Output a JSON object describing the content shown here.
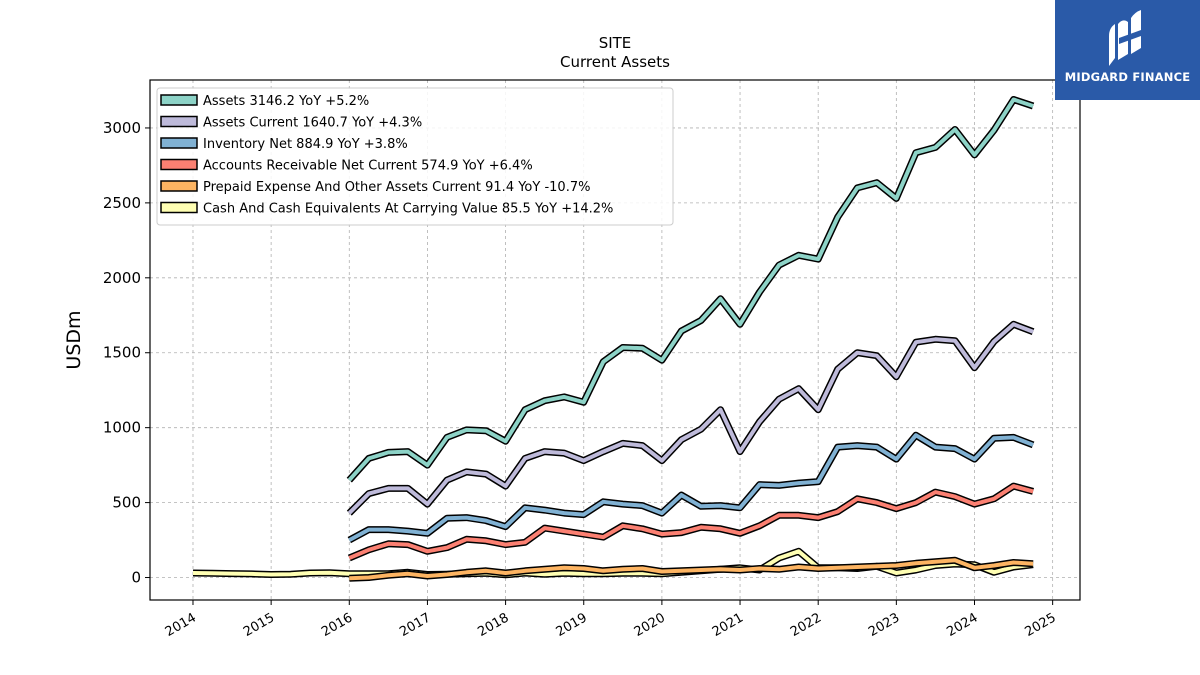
{
  "brand": {
    "name": "MIDGARD FINANCE",
    "icon": "midgard-logo-icon"
  },
  "chart_data": {
    "type": "line",
    "title": "SITE",
    "subtitle": "Current  Assets",
    "ylabel": "USDm",
    "xlabel": "",
    "ylim": [
      -150,
      3320
    ],
    "xlim": [
      2013.45,
      2025.35
    ],
    "yticks": [
      0,
      500,
      1000,
      1500,
      2000,
      2500,
      3000
    ],
    "xticks": [
      2014,
      2015,
      2016,
      2017,
      2018,
      2019,
      2020,
      2021,
      2022,
      2023,
      2024,
      2025
    ],
    "grid": true,
    "legend_position": "top-left",
    "series": [
      {
        "name": "Assets  3146.2 YoY +5.2%",
        "color": "#8dd3c7",
        "x": [
          2016.0,
          2016.25,
          2016.5,
          2016.75,
          2017.0,
          2017.25,
          2017.5,
          2017.75,
          2018.0,
          2018.25,
          2018.5,
          2018.75,
          2019.0,
          2019.25,
          2019.5,
          2019.75,
          2020.0,
          2020.25,
          2020.5,
          2020.75,
          2021.0,
          2021.25,
          2021.5,
          2021.75,
          2022.0,
          2022.25,
          2022.5,
          2022.75,
          2023.0,
          2023.25,
          2023.5,
          2023.75,
          2024.0,
          2024.25,
          2024.5,
          2024.75
        ],
        "y": [
          650,
          795,
          835,
          840,
          750,
          935,
          985,
          980,
          910,
          1120,
          1180,
          1205,
          1170,
          1440,
          1535,
          1530,
          1450,
          1645,
          1715,
          1860,
          1690,
          1905,
          2085,
          2150,
          2125,
          2405,
          2600,
          2635,
          2530,
          2835,
          2870,
          2990,
          2820,
          2985,
          3190,
          3146.2
        ]
      },
      {
        "name": "Assets Current  1640.7 YoY +4.3%",
        "color": "#bebada",
        "x": [
          2016.0,
          2016.25,
          2016.5,
          2016.75,
          2017.0,
          2017.25,
          2017.5,
          2017.75,
          2018.0,
          2018.25,
          2018.5,
          2018.75,
          2019.0,
          2019.25,
          2019.5,
          2019.75,
          2020.0,
          2020.25,
          2020.5,
          2020.75,
          2021.0,
          2021.25,
          2021.5,
          2021.75,
          2022.0,
          2022.25,
          2022.5,
          2022.75,
          2023.0,
          2023.25,
          2023.5,
          2023.75,
          2024.0,
          2024.25,
          2024.5,
          2024.75
        ],
        "y": [
          430,
          560,
          595,
          595,
          490,
          650,
          705,
          690,
          610,
          795,
          840,
          830,
          780,
          840,
          895,
          880,
          780,
          920,
          990,
          1120,
          840,
          1040,
          1190,
          1260,
          1120,
          1390,
          1500,
          1480,
          1340,
          1570,
          1590,
          1580,
          1400,
          1575,
          1690,
          1640.7
        ]
      },
      {
        "name": "Inventory Net  884.9 YoY +3.8%",
        "color": "#80b1d3",
        "x": [
          2016.0,
          2016.25,
          2016.5,
          2016.75,
          2017.0,
          2017.25,
          2017.5,
          2017.75,
          2018.0,
          2018.25,
          2018.5,
          2018.75,
          2019.0,
          2019.25,
          2019.5,
          2019.75,
          2020.0,
          2020.25,
          2020.5,
          2020.75,
          2021.0,
          2021.25,
          2021.5,
          2021.75,
          2022.0,
          2022.25,
          2022.5,
          2022.75,
          2023.0,
          2023.25,
          2023.5,
          2023.75,
          2024.0,
          2024.25,
          2024.5,
          2024.75
        ],
        "y": [
          250,
          320,
          320,
          310,
          295,
          395,
          400,
          380,
          340,
          465,
          450,
          430,
          420,
          505,
          490,
          480,
          430,
          550,
          475,
          480,
          465,
          620,
          615,
          630,
          640,
          870,
          880,
          870,
          790,
          950,
          870,
          860,
          790,
          930,
          935,
          884.9
        ]
      },
      {
        "name": "Accounts Receivable Net Current  574.9 YoY +6.4%",
        "color": "#fb8072",
        "x": [
          2016.0,
          2016.25,
          2016.5,
          2016.75,
          2017.0,
          2017.25,
          2017.5,
          2017.75,
          2018.0,
          2018.25,
          2018.5,
          2018.75,
          2019.0,
          2019.25,
          2019.5,
          2019.75,
          2020.0,
          2020.25,
          2020.5,
          2020.75,
          2021.0,
          2021.25,
          2021.5,
          2021.75,
          2022.0,
          2022.25,
          2022.5,
          2022.75,
          2023.0,
          2023.25,
          2023.5,
          2023.75,
          2024.0,
          2024.25,
          2024.5,
          2024.75
        ],
        "y": [
          130,
          185,
          225,
          220,
          175,
          200,
          255,
          245,
          220,
          235,
          330,
          310,
          290,
          270,
          345,
          325,
          290,
          300,
          335,
          325,
          295,
          345,
          415,
          415,
          400,
          440,
          525,
          500,
          460,
          500,
          570,
          540,
          490,
          525,
          610,
          574.9
        ]
      },
      {
        "name": "Prepaid Expense And Other Assets Current  91.4 YoY -10.7%",
        "color": "#fdb462",
        "x": [
          2016.0,
          2016.25,
          2016.5,
          2016.75,
          2017.0,
          2017.25,
          2017.5,
          2017.75,
          2018.0,
          2018.25,
          2018.5,
          2018.75,
          2019.0,
          2019.25,
          2019.5,
          2019.75,
          2020.0,
          2020.25,
          2020.5,
          2020.75,
          2021.0,
          2021.25,
          2021.5,
          2021.75,
          2022.0,
          2022.25,
          2022.5,
          2022.75,
          2023.0,
          2023.25,
          2023.5,
          2023.75,
          2024.0,
          2024.25,
          2024.5,
          2024.75
        ],
        "y": [
          -5,
          0,
          15,
          25,
          10,
          20,
          35,
          45,
          30,
          45,
          55,
          65,
          60,
          45,
          55,
          60,
          40,
          45,
          50,
          55,
          50,
          60,
          55,
          70,
          60,
          65,
          70,
          75,
          80,
          95,
          105,
          115,
          65,
          80,
          100,
          91.4
        ]
      },
      {
        "name": "Cash And Cash Equivalents At Carrying Value  85.5 YoY +14.2%",
        "color": "#ffffb3",
        "x": [
          2014.0,
          2014.25,
          2014.5,
          2014.75,
          2015.0,
          2015.25,
          2015.5,
          2015.75,
          2016.0,
          2016.25,
          2016.5,
          2016.75,
          2017.0,
          2017.25,
          2017.5,
          2017.75,
          2018.0,
          2018.25,
          2018.5,
          2018.75,
          2019.0,
          2019.25,
          2019.5,
          2019.75,
          2020.0,
          2020.25,
          2020.5,
          2020.75,
          2021.0,
          2021.25,
          2021.5,
          2021.75,
          2022.0,
          2022.25,
          2022.5,
          2022.75,
          2023.0,
          2023.25,
          2023.5,
          2023.75,
          2024.0,
          2024.25,
          2024.5,
          2024.75
        ],
        "y": [
          30,
          28,
          26,
          24,
          20,
          22,
          30,
          32,
          25,
          25,
          25,
          35,
          20,
          22,
          25,
          28,
          18,
          30,
          22,
          28,
          25,
          25,
          28,
          28,
          25,
          35,
          45,
          55,
          65,
          50,
          130,
          175,
          65,
          65,
          60,
          75,
          30,
          50,
          80,
          90,
          85,
          35,
          70,
          85.5
        ]
      }
    ]
  }
}
